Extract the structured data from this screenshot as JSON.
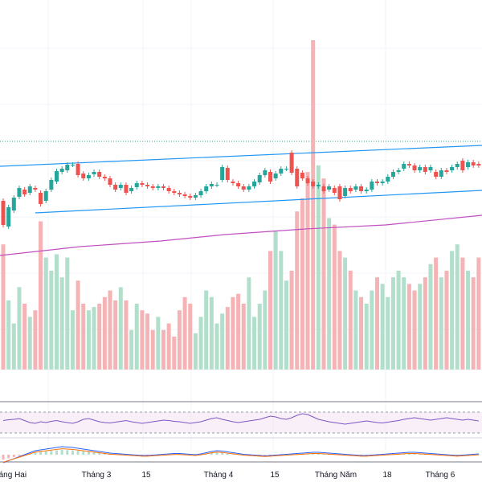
{
  "colors": {
    "up": "#26a69a",
    "down": "#ef5350",
    "volume_up": "#b2dfcb",
    "volume_down": "#f6b3b5",
    "channel": "#2196f3",
    "ma": "#c04fc0",
    "macd": "#2962ff",
    "signal": "#ff6d00",
    "rsi": "#7e57c2",
    "price_line": "#26a69a"
  },
  "chart_data": {
    "type": "candlestick",
    "x_ticks": [
      "Tháng Hai",
      "Tháng 3",
      "15",
      "Tháng 4",
      "15",
      "Tháng Năm",
      "18",
      "Tháng 6"
    ],
    "series": [
      {
        "kind": "price",
        "points": [
          [
            310,
            306
          ],
          [
            307,
            300
          ],
          [
            303,
            290
          ],
          [
            295,
            280
          ],
          [
            285,
            272
          ],
          [
            277,
            265
          ],
          [
            270,
            260
          ],
          [
            268,
            258
          ],
          [
            262,
            254
          ],
          [
            256,
            249
          ],
          [
            252,
            244
          ],
          [
            246,
            240
          ],
          [
            243,
            237
          ],
          [
            240,
            239
          ],
          [
            238,
            236
          ],
          [
            237,
            232
          ],
          [
            233,
            230
          ],
          [
            231,
            229
          ],
          [
            230,
            228
          ],
          [
            229,
            226
          ],
          [
            227,
            224
          ],
          [
            225,
            222
          ],
          [
            223,
            221
          ],
          [
            222,
            220
          ],
          [
            221,
            219
          ],
          [
            220,
            218
          ],
          [
            219,
            218
          ],
          [
            218,
            217
          ],
          [
            217,
            216
          ],
          [
            216,
            216
          ],
          [
            216,
            215
          ],
          [
            215,
            214
          ],
          [
            214,
            214
          ],
          [
            214,
            213
          ],
          [
            213,
            213
          ],
          [
            213,
            212
          ],
          [
            212,
            212
          ],
          [
            212,
            211
          ],
          [
            211,
            211
          ],
          [
            211,
            210
          ],
          [
            210,
            210
          ],
          [
            210,
            209
          ],
          [
            209,
            209
          ],
          [
            209,
            208
          ],
          [
            208,
            208
          ],
          [
            208,
            207
          ],
          [
            207,
            206
          ],
          [
            206,
            205
          ],
          [
            205,
            204
          ],
          [
            204,
            202
          ],
          [
            202,
            200
          ],
          [
            200,
            198
          ],
          [
            198,
            197
          ],
          [
            197,
            196
          ],
          [
            196,
            196
          ],
          [
            196,
            205
          ],
          [
            205,
            215
          ],
          [
            215,
            222
          ],
          [
            222,
            228
          ],
          [
            228,
            232
          ],
          [
            232,
            234
          ],
          [
            234,
            235
          ],
          [
            235,
            235
          ],
          [
            235,
            236
          ],
          [
            236,
            238
          ],
          [
            238,
            240
          ],
          [
            240,
            243
          ],
          [
            243,
            246
          ],
          [
            246,
            248
          ],
          [
            248,
            250
          ],
          [
            250,
            251
          ],
          [
            251,
            252
          ],
          [
            252,
            252
          ],
          [
            252,
            252
          ],
          [
            252,
            251
          ],
          [
            251,
            250
          ],
          [
            250,
            249
          ],
          [
            249,
            248
          ],
          [
            248,
            247
          ],
          [
            247,
            246
          ],
          [
            246,
            246
          ],
          [
            246,
            245
          ],
          [
            245,
            245
          ],
          [
            245,
            244
          ],
          [
            244,
            244
          ],
          [
            244,
            244
          ],
          [
            244,
            243
          ],
          [
            243,
            243
          ],
          [
            243,
            242
          ],
          [
            242,
            242
          ],
          [
            242,
            241
          ],
          [
            241,
            241
          ],
          [
            241,
            240
          ],
          [
            240,
            240
          ],
          [
            240,
            240
          ],
          [
            240,
            239
          ],
          [
            239,
            239
          ],
          [
            239,
            239
          ],
          [
            239,
            238
          ],
          [
            238,
            238
          ]
        ]
      },
      {
        "kind": "ma_line",
        "points": [
          [
            0,
            318
          ],
          [
            100,
            307
          ],
          [
            200,
            300
          ],
          [
            280,
            292
          ],
          [
            380,
            285
          ],
          [
            480,
            280
          ],
          [
            600,
            268
          ]
        ]
      },
      {
        "kind": "channel_upper",
        "points": [
          [
            0,
            207
          ],
          [
            600,
            181
          ]
        ]
      },
      {
        "kind": "channel_lower",
        "points": [
          [
            44,
            265
          ],
          [
            600,
            237
          ]
        ]
      }
    ],
    "candles": [
      {
        "i": 0,
        "o": 250,
        "c": 280,
        "up": false
      },
      {
        "i": 1,
        "o": 282,
        "c": 258,
        "up": true
      },
      {
        "i": 2,
        "o": 262,
        "c": 246,
        "up": true
      },
      {
        "i": 3,
        "o": 245,
        "c": 234,
        "up": true
      },
      {
        "i": 4,
        "o": 236,
        "c": 242,
        "up": false
      },
      {
        "i": 5,
        "o": 240,
        "c": 232,
        "up": true
      },
      {
        "i": 6,
        "o": 234,
        "c": 236,
        "up": false
      },
      {
        "i": 7,
        "o": 240,
        "c": 254,
        "up": false
      },
      {
        "i": 8,
        "o": 250,
        "c": 238,
        "up": true
      },
      {
        "i": 9,
        "o": 236,
        "c": 224,
        "up": true
      },
      {
        "i": 10,
        "o": 226,
        "c": 213,
        "up": true
      },
      {
        "i": 11,
        "o": 214,
        "c": 210,
        "up": true
      },
      {
        "i": 12,
        "o": 212,
        "c": 205,
        "up": true
      },
      {
        "i": 13,
        "o": 205,
        "c": 205,
        "up": true
      },
      {
        "i": 14,
        "o": 204,
        "c": 218,
        "up": false
      },
      {
        "i": 15,
        "o": 216,
        "c": 222,
        "up": false
      },
      {
        "i": 16,
        "o": 222,
        "c": 218,
        "up": true
      },
      {
        "i": 17,
        "o": 217,
        "c": 214,
        "up": true
      },
      {
        "i": 18,
        "o": 214,
        "c": 220,
        "up": false
      },
      {
        "i": 19,
        "o": 220,
        "c": 222,
        "up": false
      },
      {
        "i": 20,
        "o": 222,
        "c": 230,
        "up": false
      },
      {
        "i": 21,
        "o": 230,
        "c": 236,
        "up": false
      },
      {
        "i": 22,
        "o": 234,
        "c": 230,
        "up": true
      },
      {
        "i": 23,
        "o": 230,
        "c": 240,
        "up": false
      },
      {
        "i": 24,
        "o": 238,
        "c": 234,
        "up": true
      },
      {
        "i": 25,
        "o": 233,
        "c": 228,
        "up": true
      },
      {
        "i": 26,
        "o": 228,
        "c": 230,
        "up": false
      },
      {
        "i": 27,
        "o": 230,
        "c": 232,
        "up": false
      },
      {
        "i": 28,
        "o": 232,
        "c": 234,
        "up": false
      },
      {
        "i": 29,
        "o": 234,
        "c": 232,
        "up": true
      },
      {
        "i": 30,
        "o": 232,
        "c": 234,
        "up": false
      },
      {
        "i": 31,
        "o": 234,
        "c": 238,
        "up": false
      },
      {
        "i": 32,
        "o": 238,
        "c": 240,
        "up": false
      },
      {
        "i": 33,
        "o": 240,
        "c": 242,
        "up": false
      },
      {
        "i": 34,
        "o": 242,
        "c": 244,
        "up": false
      },
      {
        "i": 35,
        "o": 244,
        "c": 246,
        "up": false
      },
      {
        "i": 36,
        "o": 246,
        "c": 243,
        "up": true
      },
      {
        "i": 37,
        "o": 243,
        "c": 238,
        "up": true
      },
      {
        "i": 38,
        "o": 238,
        "c": 232,
        "up": true
      },
      {
        "i": 39,
        "o": 232,
        "c": 229,
        "up": true
      },
      {
        "i": 40,
        "o": 230,
        "c": 230,
        "up": true
      },
      {
        "i": 41,
        "o": 224,
        "c": 208,
        "up": true
      },
      {
        "i": 42,
        "o": 209,
        "c": 224,
        "up": false
      },
      {
        "i": 43,
        "o": 226,
        "c": 228,
        "up": false
      },
      {
        "i": 44,
        "o": 228,
        "c": 232,
        "up": false
      },
      {
        "i": 45,
        "o": 232,
        "c": 236,
        "up": false
      },
      {
        "i": 46,
        "o": 236,
        "c": 232,
        "up": true
      },
      {
        "i": 47,
        "o": 232,
        "c": 226,
        "up": true
      },
      {
        "i": 48,
        "o": 227,
        "c": 218,
        "up": true
      },
      {
        "i": 49,
        "o": 218,
        "c": 212,
        "up": true
      },
      {
        "i": 50,
        "o": 214,
        "c": 226,
        "up": false
      },
      {
        "i": 51,
        "o": 222,
        "c": 216,
        "up": true
      },
      {
        "i": 52,
        "o": 216,
        "c": 210,
        "up": true
      },
      {
        "i": 53,
        "o": 210,
        "c": 210,
        "up": true
      },
      {
        "i": 54,
        "o": 190,
        "c": 215,
        "up": false
      },
      {
        "i": 55,
        "o": 210,
        "c": 232,
        "up": false
      },
      {
        "i": 56,
        "o": 215,
        "c": 222,
        "up": false
      },
      {
        "i": 57,
        "o": 222,
        "c": 228,
        "up": false
      },
      {
        "i": 58,
        "o": 226,
        "c": 232,
        "up": false
      },
      {
        "i": 59,
        "o": 232,
        "c": 230,
        "up": true
      },
      {
        "i": 60,
        "o": 232,
        "c": 238,
        "up": false
      },
      {
        "i": 61,
        "o": 236,
        "c": 232,
        "up": true
      },
      {
        "i": 62,
        "o": 234,
        "c": 240,
        "up": false
      },
      {
        "i": 63,
        "o": 232,
        "c": 248,
        "up": false
      },
      {
        "i": 64,
        "o": 244,
        "c": 234,
        "up": true
      },
      {
        "i": 65,
        "o": 234,
        "c": 238,
        "up": false
      },
      {
        "i": 66,
        "o": 236,
        "c": 232,
        "up": true
      },
      {
        "i": 67,
        "o": 232,
        "c": 238,
        "up": false
      },
      {
        "i": 68,
        "o": 238,
        "c": 236,
        "up": true
      },
      {
        "i": 69,
        "o": 236,
        "c": 226,
        "up": true
      },
      {
        "i": 70,
        "o": 226,
        "c": 228,
        "up": false
      },
      {
        "i": 71,
        "o": 228,
        "c": 226,
        "up": true
      },
      {
        "i": 72,
        "o": 226,
        "c": 220,
        "up": true
      },
      {
        "i": 73,
        "o": 220,
        "c": 214,
        "up": true
      },
      {
        "i": 74,
        "o": 214,
        "c": 212,
        "up": true
      },
      {
        "i": 75,
        "o": 210,
        "c": 204,
        "up": true
      },
      {
        "i": 76,
        "o": 204,
        "c": 206,
        "up": false
      },
      {
        "i": 77,
        "o": 206,
        "c": 212,
        "up": false
      },
      {
        "i": 78,
        "o": 212,
        "c": 208,
        "up": true
      },
      {
        "i": 79,
        "o": 208,
        "c": 214,
        "up": false
      },
      {
        "i": 80,
        "o": 212,
        "c": 208,
        "up": true
      },
      {
        "i": 81,
        "o": 214,
        "c": 220,
        "up": false
      },
      {
        "i": 82,
        "o": 220,
        "c": 212,
        "up": true
      },
      {
        "i": 83,
        "o": 212,
        "c": 214,
        "up": false
      },
      {
        "i": 84,
        "o": 212,
        "c": 208,
        "up": true
      },
      {
        "i": 85,
        "o": 208,
        "c": 204,
        "up": true
      },
      {
        "i": 86,
        "o": 200,
        "c": 212,
        "up": false
      },
      {
        "i": 87,
        "o": 208,
        "c": 202,
        "up": true
      },
      {
        "i": 88,
        "o": 202,
        "c": 206,
        "up": false
      },
      {
        "i": 89,
        "o": 204,
        "c": 206,
        "up": false
      }
    ],
    "volume": [
      0.38,
      0.21,
      0.14,
      0.25,
      0.2,
      0.16,
      0.18,
      0.45,
      0.34,
      0.3,
      0.35,
      0.28,
      0.34,
      0.18,
      0.27,
      0.2,
      0.18,
      0.19,
      0.2,
      0.22,
      0.24,
      0.21,
      0.25,
      0.21,
      0.12,
      0.2,
      0.18,
      0.17,
      0.12,
      0.16,
      0.12,
      0.14,
      0.1,
      0.18,
      0.22,
      0.2,
      0.11,
      0.16,
      0.24,
      0.22,
      0.14,
      0.17,
      0.19,
      0.22,
      0.23,
      0.2,
      0.28,
      0.16,
      0.2,
      0.24,
      0.36,
      0.42,
      0.36,
      0.27,
      0.3,
      0.48,
      0.52,
      0.6,
      1.0,
      0.62,
      0.58,
      0.46,
      0.44,
      0.36,
      0.34,
      0.3,
      0.24,
      0.22,
      0.2,
      0.24,
      0.28,
      0.26,
      0.22,
      0.28,
      0.3,
      0.28,
      0.26,
      0.24,
      0.26,
      0.28,
      0.32,
      0.34,
      0.28,
      0.3,
      0.36,
      0.38,
      0.34,
      0.3,
      0.28,
      0.34
    ],
    "rsi": [
      55,
      57,
      58,
      60,
      55,
      50,
      48,
      52,
      50,
      53,
      55,
      52,
      50,
      48,
      52,
      58,
      60,
      56,
      52,
      50,
      49,
      51,
      53,
      55,
      52,
      50,
      48,
      50,
      52,
      54,
      56,
      55,
      53,
      52,
      50,
      48,
      50,
      52,
      56,
      60,
      62,
      58,
      55,
      52,
      50,
      52,
      54,
      56,
      58,
      62,
      66,
      64,
      60,
      58,
      62,
      68,
      72,
      70,
      64,
      58,
      55,
      52,
      50,
      48,
      46,
      48,
      50,
      52,
      54,
      52,
      50,
      49,
      51,
      53,
      55,
      58,
      60,
      62,
      60,
      58,
      56,
      58,
      60,
      62,
      60,
      58,
      56,
      58,
      56,
      54
    ],
    "macd": [
      -2,
      -1.5,
      -1,
      -0.5,
      0,
      0.5,
      1,
      1.2,
      1.4,
      1.6,
      1.8,
      2,
      1.9,
      1.8,
      1.6,
      1.4,
      1.2,
      1,
      0.8,
      0.6,
      0.4,
      0.3,
      0.2,
      0.1,
      0,
      -0.1,
      -0.2,
      -0.2,
      -0.1,
      0,
      0.1,
      0.2,
      0.3,
      0.3,
      0.2,
      0.1,
      0,
      0.2,
      0.5,
      0.8,
      1.0,
      0.9,
      0.7,
      0.5,
      0.3,
      0.1,
      0,
      -0.1,
      -0.2,
      -0.3,
      -0.2,
      -0.1,
      0,
      0.1,
      0.2,
      0.3,
      0.4,
      0.5,
      0.6,
      0.6,
      0.5,
      0.4,
      0.3,
      0.2,
      0.1,
      0,
      -0.1,
      -0.2,
      -0.2,
      -0.1,
      0,
      0.1,
      0.2,
      0.3,
      0.4,
      0.5,
      0.6,
      0.6,
      0.5,
      0.4,
      0.3,
      0.2,
      0.1,
      0,
      -0.1,
      -0.2,
      -0.1,
      0,
      0.1,
      0.2
    ]
  }
}
